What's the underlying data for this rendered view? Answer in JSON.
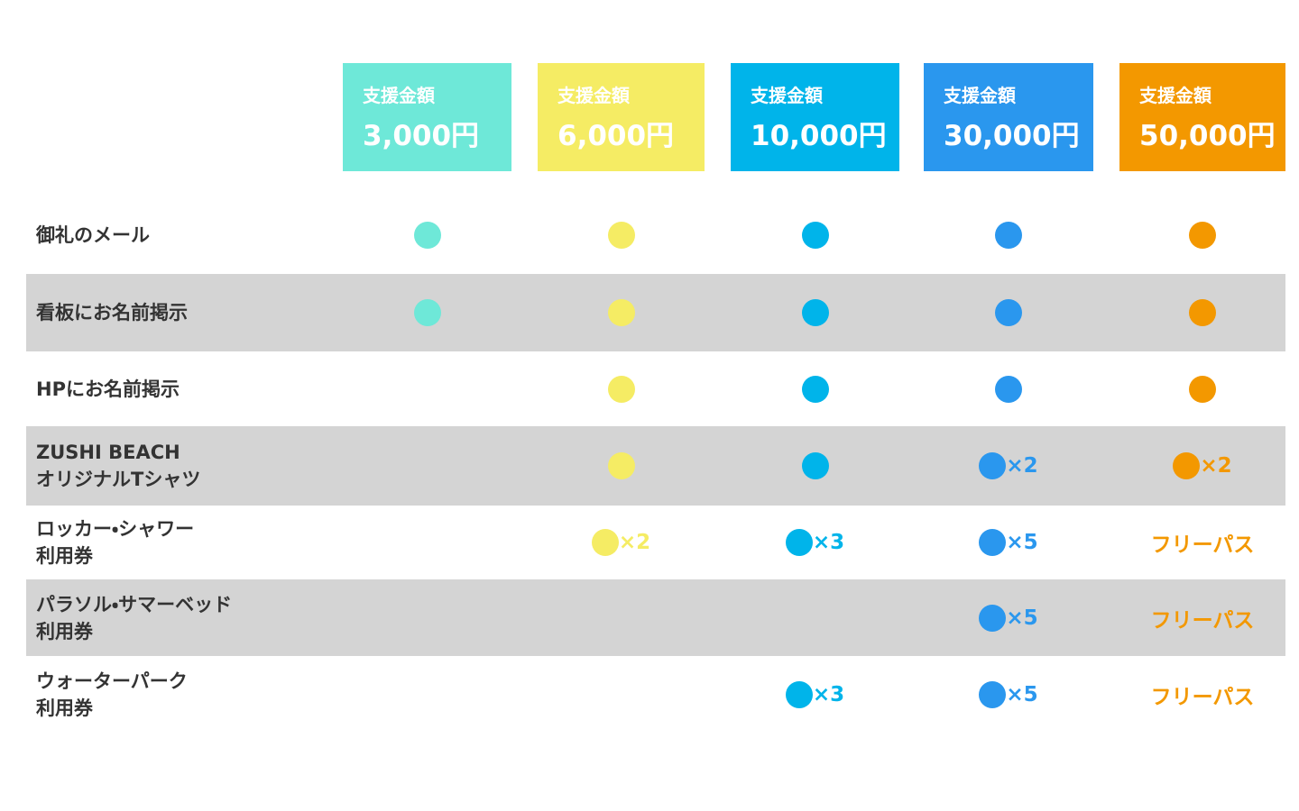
{
  "columns": [
    {
      "label": "支援金額",
      "amount": "3,000円",
      "color": "#6ee8d8"
    },
    {
      "label": "支援金額",
      "amount": "6,000円",
      "color": "#f5ec64"
    },
    {
      "label": "支援金額",
      "amount": "10,000円",
      "color": "#00b4ea"
    },
    {
      "label": "支援金額",
      "amount": "30,000円",
      "color": "#2a97ee"
    },
    {
      "label": "支援金額",
      "amount": "50,000円",
      "color": "#f39800"
    }
  ],
  "rows": [
    {
      "label": [
        "御礼のメール"
      ],
      "cells": [
        {
          "mark": "dot"
        },
        {
          "mark": "dot"
        },
        {
          "mark": "dot"
        },
        {
          "mark": "dot"
        },
        {
          "mark": "dot"
        }
      ]
    },
    {
      "label": [
        "看板にお名前掲示"
      ],
      "cells": [
        {
          "mark": "dot"
        },
        {
          "mark": "dot"
        },
        {
          "mark": "dot"
        },
        {
          "mark": "dot"
        },
        {
          "mark": "dot"
        }
      ]
    },
    {
      "label": [
        "HPにお名前掲示"
      ],
      "cells": [
        null,
        {
          "mark": "dot"
        },
        {
          "mark": "dot"
        },
        {
          "mark": "dot"
        },
        {
          "mark": "dot"
        }
      ]
    },
    {
      "label": [
        "ZUSHI BEACH",
        "オリジナルTシャツ"
      ],
      "cells": [
        null,
        {
          "mark": "dot"
        },
        {
          "mark": "dot"
        },
        {
          "mark": "dot",
          "text": "×2"
        },
        {
          "mark": "dot",
          "text": "×2"
        }
      ]
    },
    {
      "label": [
        "ロッカー・シャワー",
        "利用券"
      ],
      "cells": [
        null,
        {
          "mark": "dot",
          "text": "×2"
        },
        {
          "mark": "dot",
          "text": "×3"
        },
        {
          "mark": "dot",
          "text": "×5"
        },
        {
          "text": "フリーパス"
        }
      ]
    },
    {
      "label": [
        "パラソル・サマーベッド",
        "利用券"
      ],
      "cells": [
        null,
        null,
        null,
        {
          "mark": "dot",
          "text": "×5"
        },
        {
          "text": "フリーパス"
        }
      ]
    },
    {
      "label": [
        "ウォーターパーク",
        "利用券"
      ],
      "cells": [
        null,
        null,
        {
          "mark": "dot",
          "text": "×3"
        },
        {
          "mark": "dot",
          "text": "×5"
        },
        {
          "text": "フリーパス"
        }
      ]
    }
  ]
}
